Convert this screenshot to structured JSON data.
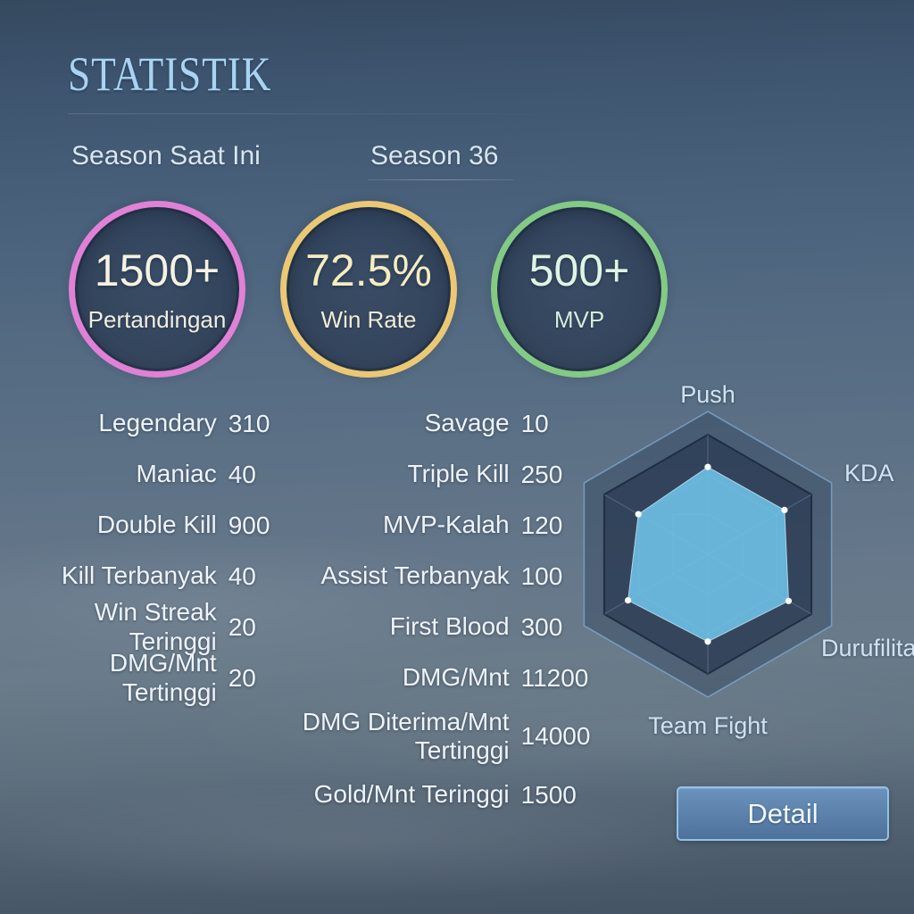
{
  "title": "STATISTIK",
  "tabs": [
    {
      "label": "Season Saat Ini",
      "active": false
    },
    {
      "label": "Season 36",
      "active": true
    }
  ],
  "summary_circles": [
    {
      "value": "1500+",
      "label": "Pertandingan",
      "ring_color": "#e081d6",
      "value_color": "#f5f2e2",
      "label_color": "#f1eee1"
    },
    {
      "value": "72.5%",
      "label": "Win Rate",
      "ring_color": "#ecc873",
      "value_color": "#f5ecc0",
      "label_color": "#f2ecd6"
    },
    {
      "value": "500+",
      "label": "MVP",
      "ring_color": "#83ca85",
      "value_color": "#dff5e2",
      "label_color": "#d5ecdc"
    }
  ],
  "stats_left": [
    {
      "label": "Legendary",
      "value": "310"
    },
    {
      "label": "Maniac",
      "value": "40"
    },
    {
      "label": "Double Kill",
      "value": "900"
    },
    {
      "label": "Kill Terbanyak",
      "value": "40"
    },
    {
      "label": "Win Streak Teringgi",
      "value": "20"
    },
    {
      "label": "DMG/Mnt Tertinggi",
      "value": "20"
    }
  ],
  "stats_right": [
    {
      "label": "Savage",
      "value": "10"
    },
    {
      "label": "Triple Kill",
      "value": "250"
    },
    {
      "label": "MVP-Kalah",
      "value": "120"
    },
    {
      "label": "Assist Terbanyak",
      "value": "100"
    },
    {
      "label": "First Blood",
      "value": "300"
    },
    {
      "label": "DMG/Mnt",
      "value": "11200"
    },
    {
      "label": "DMG Diterima/Mnt Tertinggi",
      "value": "14000"
    },
    {
      "label": "Gold/Mnt Teringgi",
      "value": "1500"
    }
  ],
  "chart_data": {
    "type": "radar",
    "axes": [
      "Push",
      "KDA",
      "Durufilita",
      "Team Fight",
      "",
      ""
    ],
    "labels_visible": [
      "Push",
      "KDA",
      "Durufilita",
      "Team Fight"
    ],
    "values_fraction_of_max": [
      0.73,
      0.74,
      0.78,
      0.73,
      0.77,
      0.67
    ],
    "max": 1,
    "grid_rings": 3,
    "fill_color": "#6ec4e9",
    "point_color": "#ffffff",
    "legend": "none"
  },
  "detail_button": {
    "label": "Detail"
  }
}
